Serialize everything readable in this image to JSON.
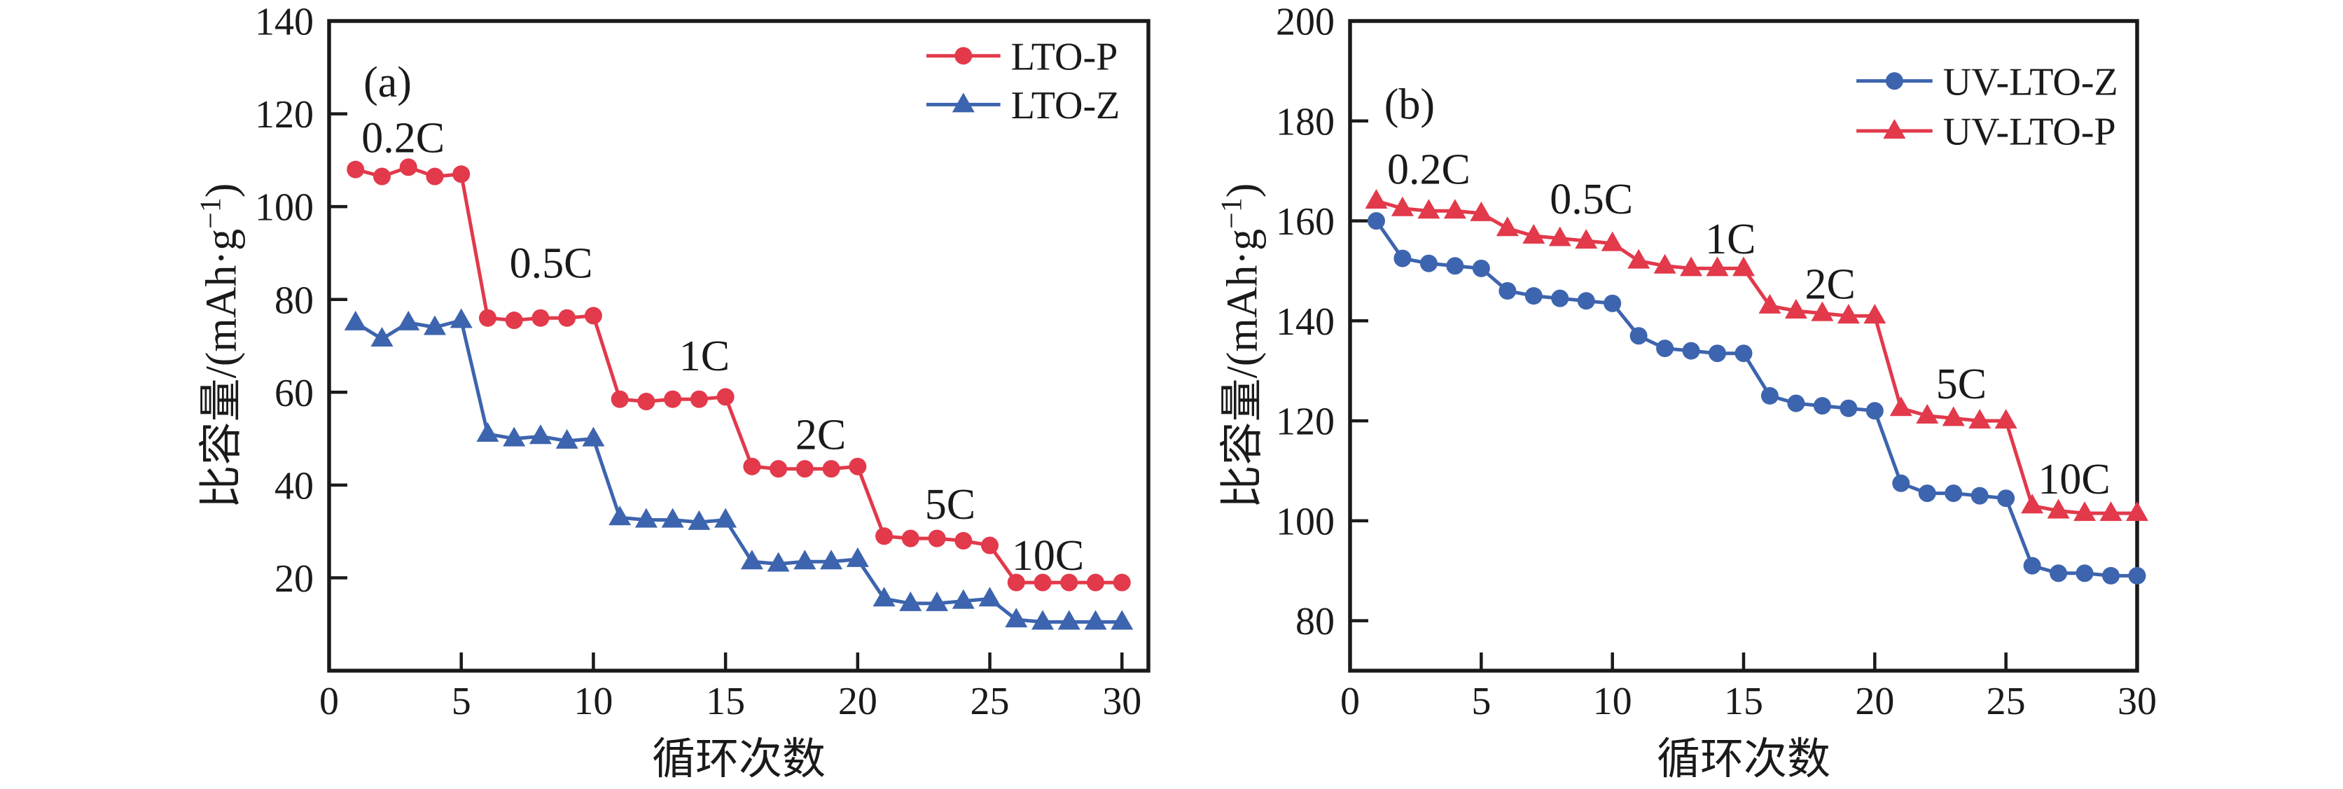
{
  "figure": {
    "background": "#ffffff",
    "axis_color": "#1a1a1a",
    "panel_count": 2
  },
  "chart_data": [
    {
      "id": "a",
      "type": "line",
      "panel_label": {
        "text": "(a)",
        "x": 1.3,
        "y": 127
      },
      "xlabel": "循环次数",
      "ylabel": {
        "prefix": "比容量/(mAh·g",
        "sup": "−1",
        "suffix": ")"
      },
      "xlim": [
        0,
        31
      ],
      "ylim": [
        0,
        140
      ],
      "xticks": [
        0,
        5,
        10,
        15,
        20,
        25,
        30
      ],
      "yticks": [
        20,
        40,
        60,
        80,
        100,
        120,
        140
      ],
      "grid": false,
      "legend": {
        "position": "top-right",
        "entries": [
          "LTO-P",
          "LTO-Z"
        ]
      },
      "x": [
        1,
        2,
        3,
        4,
        5,
        6,
        7,
        8,
        9,
        10,
        11,
        12,
        13,
        14,
        15,
        16,
        17,
        18,
        19,
        20,
        21,
        22,
        23,
        24,
        25,
        26,
        27,
        28,
        29,
        30
      ],
      "series": [
        {
          "name": "LTO-P",
          "color": "#e2394b",
          "marker": "circle",
          "values": [
            108,
            106.5,
            108.5,
            106.5,
            107,
            76,
            75.5,
            76,
            76,
            76.5,
            58.5,
            58,
            58.5,
            58.5,
            59,
            44,
            43.5,
            43.5,
            43.5,
            44,
            29,
            28.5,
            28.5,
            28,
            27,
            19,
            19,
            19,
            19,
            19
          ]
        },
        {
          "name": "LTO-Z",
          "color": "#3d64ae",
          "marker": "triangle",
          "values": [
            75,
            71.5,
            75,
            74,
            75.5,
            51,
            50,
            50.5,
            49.5,
            50,
            33,
            32.5,
            32.5,
            32,
            32.5,
            23.5,
            23,
            23.5,
            23.5,
            24,
            15.5,
            14.5,
            14.5,
            15,
            15.5,
            11,
            10.5,
            10.5,
            10.5,
            10.5
          ]
        }
      ],
      "annotations": [
        {
          "text": "0.2C",
          "x": 2.8,
          "y": 115
        },
        {
          "text": "0.5C",
          "x": 8.4,
          "y": 88
        },
        {
          "text": "1C",
          "x": 14.2,
          "y": 68
        },
        {
          "text": "2C",
          "x": 18.6,
          "y": 51
        },
        {
          "text": "5C",
          "x": 23.5,
          "y": 36
        },
        {
          "text": "10C",
          "x": 27.2,
          "y": 25
        }
      ]
    },
    {
      "id": "b",
      "type": "line",
      "panel_label": {
        "text": "(b)",
        "x": 1.3,
        "y": 183.5
      },
      "xlabel": "循环次数",
      "ylabel": {
        "prefix": "比容量/(mAh·g",
        "sup": "−1",
        "suffix": ")"
      },
      "xlim": [
        0,
        30
      ],
      "ylim": [
        70,
        200
      ],
      "xticks": [
        0,
        5,
        10,
        15,
        20,
        25,
        30
      ],
      "yticks": [
        80,
        100,
        120,
        140,
        160,
        180,
        200
      ],
      "grid": false,
      "legend": {
        "position": "top-right",
        "entries": [
          "UV-LTO-Z",
          "UV-LTO-P"
        ]
      },
      "x": [
        1,
        2,
        3,
        4,
        5,
        6,
        7,
        8,
        9,
        10,
        11,
        12,
        13,
        14,
        15,
        16,
        17,
        18,
        19,
        20,
        21,
        22,
        23,
        24,
        25,
        26,
        27,
        28,
        29,
        30
      ],
      "series": [
        {
          "name": "UV-LTO-Z",
          "color": "#3d64ae",
          "marker": "circle",
          "values": [
            160,
            152.5,
            151.5,
            151,
            150.5,
            146,
            145,
            144.5,
            144,
            143.5,
            137,
            134.5,
            134,
            133.5,
            133.5,
            125,
            123.5,
            123,
            122.5,
            122,
            107.5,
            105.5,
            105.5,
            105,
            104.5,
            91,
            89.5,
            89.5,
            89,
            89
          ]
        },
        {
          "name": "UV-LTO-P",
          "color": "#e2394b",
          "marker": "triangle",
          "values": [
            164,
            162.5,
            162,
            162,
            161.5,
            158.5,
            157,
            156.5,
            156,
            155.5,
            152,
            151,
            150.5,
            150.5,
            150.5,
            143,
            142,
            141.5,
            141,
            141,
            122.5,
            121,
            120.5,
            120,
            120,
            103,
            102,
            101.5,
            101.5,
            101.5
          ]
        }
      ],
      "annotations": [
        {
          "text": "0.2C",
          "x": 3.0,
          "y": 170.5
        },
        {
          "text": "0.5C",
          "x": 9.2,
          "y": 164.5
        },
        {
          "text": "1C",
          "x": 14.5,
          "y": 156.5
        },
        {
          "text": "2C",
          "x": 18.3,
          "y": 147.5
        },
        {
          "text": "5C",
          "x": 23.3,
          "y": 127.5
        },
        {
          "text": "10C",
          "x": 27.6,
          "y": 108.5
        }
      ]
    }
  ]
}
